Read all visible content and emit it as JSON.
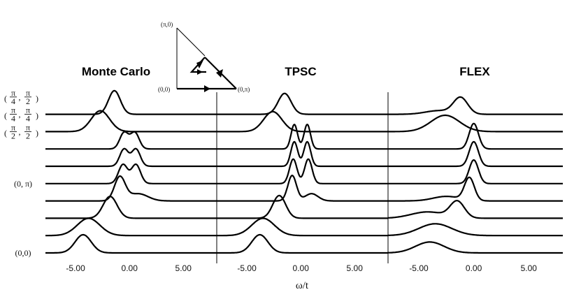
{
  "chart_data": {
    "type": "line",
    "xlabel": "ω/t",
    "xlim": [
      -7.8,
      8.1
    ],
    "x_ticks": [
      "-5.00",
      "0.00",
      "5.00"
    ],
    "x_tick_values": [
      -5,
      0,
      5
    ],
    "k_labels": [
      {
        "row": 9,
        "num1": "π",
        "den1": "4",
        "num2": "π",
        "den2": "2"
      },
      {
        "row": 8,
        "num1": "π",
        "den1": "4",
        "num2": "π",
        "den2": "4"
      },
      {
        "row": 7,
        "num1": "π",
        "den1": "2",
        "num2": "π",
        "den2": "2"
      },
      {
        "row": 4,
        "text": "(0, π)"
      },
      {
        "row": 0,
        "text": "(0,0)"
      }
    ],
    "inset": {
      "labels": {
        "top": "(π,0)",
        "left": "(0,0)",
        "right": "(0,π)"
      }
    },
    "panels": [
      {
        "title": "Monte Carlo",
        "rows": [
          {
            "peaks": [
              [
                -4.3,
                1.0,
                0.75
              ]
            ]
          },
          {
            "peaks": [
              [
                -3.8,
                0.95,
                1.05
              ]
            ]
          },
          {
            "peaks": [
              [
                -1.8,
                1.2,
                0.65
              ]
            ]
          },
          {
            "peaks": [
              [
                -0.9,
                1.3,
                0.5
              ],
              [
                0.8,
                0.4,
                0.9
              ]
            ]
          },
          {
            "peaks": [
              [
                -0.6,
                1.05,
                0.42
              ],
              [
                0.6,
                1.05,
                0.42
              ]
            ]
          },
          {
            "peaks": [
              [
                -0.5,
                0.95,
                0.4
              ],
              [
                0.6,
                0.95,
                0.4
              ]
            ]
          },
          {
            "peaks": [
              [
                -0.5,
                0.9,
                0.4
              ],
              [
                0.5,
                0.9,
                0.4
              ]
            ]
          },
          {
            "peaks": [
              [
                -2.7,
                1.15,
                0.85
              ]
            ]
          },
          {
            "peaks": [
              [
                -1.4,
                1.3,
                0.55
              ]
            ]
          }
        ]
      },
      {
        "title": "TPSC",
        "rows": [
          {
            "peaks": [
              [
                -3.8,
                1.0,
                0.75
              ]
            ]
          },
          {
            "peaks": [
              [
                -3.5,
                0.95,
                1.05
              ]
            ]
          },
          {
            "peaks": [
              [
                -2.0,
                1.25,
                0.6
              ]
            ]
          },
          {
            "peaks": [
              [
                -0.8,
                1.4,
                0.4
              ],
              [
                1.0,
                0.4,
                0.6
              ]
            ]
          },
          {
            "peaks": [
              [
                -0.7,
                1.35,
                0.35
              ],
              [
                0.7,
                1.35,
                0.35
              ]
            ]
          },
          {
            "peaks": [
              [
                -0.6,
                1.35,
                0.32
              ],
              [
                0.6,
                1.35,
                0.32
              ]
            ]
          },
          {
            "peaks": [
              [
                -0.6,
                1.35,
                0.3
              ],
              [
                0.6,
                1.35,
                0.3
              ]
            ]
          },
          {
            "peaks": [
              [
                -2.6,
                1.1,
                0.85
              ]
            ]
          },
          {
            "peaks": [
              [
                -1.5,
                1.15,
                0.6
              ]
            ]
          }
        ]
      },
      {
        "title": "FLEX",
        "rows": [
          {
            "peaks": [
              [
                -4.0,
                0.6,
                1.3
              ]
            ]
          },
          {
            "peaks": [
              [
                -3.5,
                0.65,
                1.5
              ]
            ]
          },
          {
            "peaks": [
              [
                -1.5,
                0.9,
                0.65
              ],
              [
                -4.2,
                0.35,
                1.5
              ]
            ]
          },
          {
            "peaks": [
              [
                -0.4,
                1.25,
                0.45
              ],
              [
                -2.5,
                0.25,
                1.2
              ]
            ]
          },
          {
            "peaks": [
              [
                0.0,
                1.3,
                0.42
              ]
            ]
          },
          {
            "peaks": [
              [
                0.0,
                1.35,
                0.42
              ]
            ]
          },
          {
            "peaks": [
              [
                0.0,
                1.4,
                0.42
              ]
            ]
          },
          {
            "peaks": [
              [
                -2.6,
                0.9,
                1.3
              ]
            ]
          },
          {
            "peaks": [
              [
                -1.2,
                0.9,
                0.65
              ],
              [
                -3.2,
                0.2,
                1.2
              ]
            ]
          }
        ]
      }
    ]
  }
}
